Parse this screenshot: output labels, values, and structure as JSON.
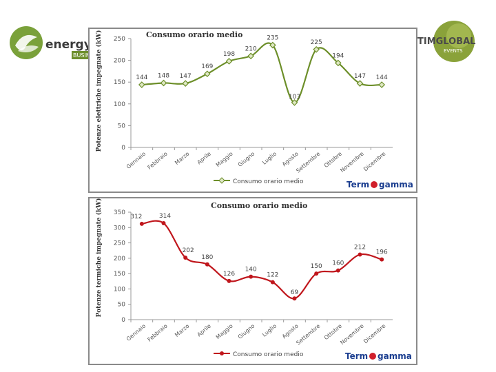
{
  "logos": {
    "left_text": "energy effi",
    "left_sub": "BUSINESS",
    "right_line1": "TIMGLOBAL",
    "right_line2": "EVENTS",
    "right_color": "#8aa23a"
  },
  "watermark": {
    "word_start": "Term",
    "word_end": "gamma",
    "color_text": "#1a3d8f",
    "color_dot": "#d0202c"
  },
  "chart_data": [
    {
      "type": "line",
      "title": "Consumo orario medio",
      "ylabel": "Potenze elettriche impegnate (kW)",
      "xlabel": "",
      "categories": [
        "Gennaio",
        "Febbraio",
        "Marzo",
        "Aprile",
        "Maggio",
        "Giugno",
        "Luglio",
        "Agosto",
        "Settembre",
        "Ottobre",
        "Novembre",
        "Dicembre"
      ],
      "series": [
        {
          "name": "Consumo orario medio",
          "values": [
            144,
            148,
            147,
            169,
            198,
            210,
            235,
            103,
            225,
            194,
            147,
            144
          ]
        }
      ],
      "ylim": [
        0,
        250
      ],
      "yticks": [
        0,
        50,
        100,
        150,
        200,
        250
      ],
      "legend": "bottom",
      "line_color": "#6d8f2a",
      "marker": "diamond"
    },
    {
      "type": "line",
      "title": "Consumo orario medio",
      "ylabel": "Potenze termiche impegnate (kW)",
      "xlabel": "",
      "categories": [
        "Gennaio",
        "Febbraio",
        "Marzo",
        "Aprile",
        "Maggio",
        "Giugno",
        "Luglio",
        "Agosto",
        "Settembre",
        "Ottobre",
        "Novembre",
        "Dicembre"
      ],
      "series": [
        {
          "name": "Consumo orario medio",
          "values": [
            312,
            314,
            202,
            180,
            126,
            140,
            122,
            69,
            150,
            160,
            212,
            196
          ]
        }
      ],
      "ylim": [
        0,
        350
      ],
      "yticks": [
        0,
        50,
        100,
        150,
        200,
        250,
        300,
        350
      ],
      "legend": "bottom",
      "line_color": "#c0161c",
      "marker": "circle"
    }
  ]
}
